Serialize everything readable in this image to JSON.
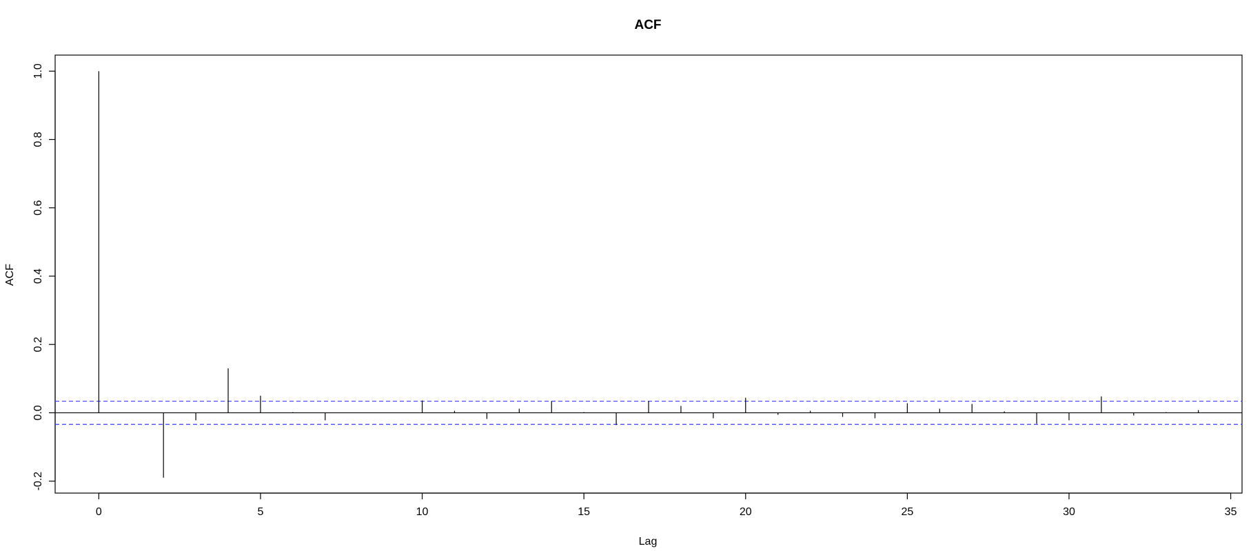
{
  "chart_data": {
    "type": "bar",
    "title": "ACF",
    "xlabel": "Lag",
    "ylabel": "ACF",
    "xlim": [
      -1.35,
      35.35
    ],
    "ylim": [
      -0.235,
      1.047
    ],
    "xticks": [
      0,
      5,
      10,
      15,
      20,
      25,
      30,
      35
    ],
    "xtick_labels": [
      "0",
      "5",
      "10",
      "15",
      "20",
      "25",
      "30",
      "35"
    ],
    "yticks": [
      -0.2,
      0.0,
      0.2,
      0.4,
      0.6,
      0.8,
      1.0
    ],
    "ytick_labels": [
      "-0.2",
      "0.0",
      "0.2",
      "0.4",
      "0.6",
      "0.8",
      "1.0"
    ],
    "grid": false,
    "lags": [
      0,
      1,
      2,
      3,
      4,
      5,
      6,
      7,
      8,
      9,
      10,
      11,
      12,
      13,
      14,
      15,
      16,
      17,
      18,
      19,
      20,
      21,
      22,
      23,
      24,
      25,
      26,
      27,
      28,
      29,
      30,
      31,
      32,
      33,
      34
    ],
    "values": [
      1.0,
      0.0,
      -0.19,
      -0.022,
      0.13,
      0.05,
      0.002,
      -0.022,
      0.0,
      0.0,
      0.036,
      0.006,
      -0.018,
      0.012,
      0.034,
      0.002,
      -0.036,
      0.034,
      0.02,
      -0.016,
      0.044,
      -0.006,
      0.006,
      -0.012,
      -0.016,
      0.028,
      0.012,
      0.026,
      0.004,
      -0.032,
      -0.022,
      0.048,
      -0.008,
      0.002,
      0.008
    ],
    "confidence_bounds": [
      0.034,
      -0.034
    ],
    "colors": {
      "bars": "#000000",
      "confidence": "#3b3bff",
      "zero_line": "#000000",
      "frame": "#000000"
    }
  }
}
